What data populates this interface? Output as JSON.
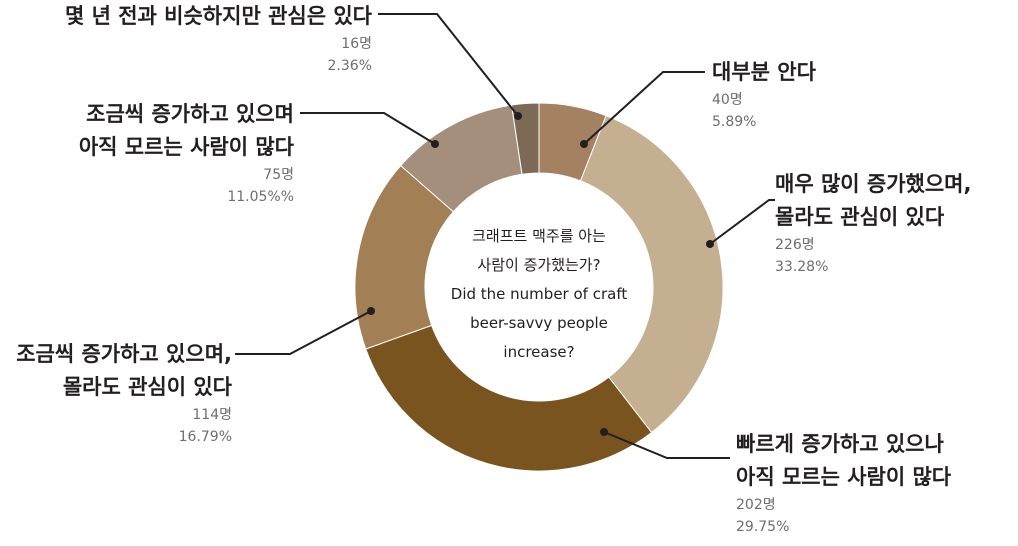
{
  "chart_data": {
    "type": "pie",
    "donut": true,
    "title": "크래프트 맥주를 아는 사람이 증가했는가? Did the number of craft beer-savvy people increase?",
    "center_lines": [
      "크래프트 맥주를 아는",
      "사람이 증가했는가?",
      "Did the number of craft",
      "beer-savvy people",
      "increase?"
    ],
    "slices": [
      {
        "label_lines": [
          "대부분 안다"
        ],
        "count": "40명",
        "pct_text": "5.89%",
        "value": 5.89,
        "color": "#a48161"
      },
      {
        "label_lines": [
          "매우 많이 증가했으며,",
          "몰라도 관심이 있다"
        ],
        "count": "226명",
        "pct_text": "33.28%",
        "value": 33.28,
        "color": "#c4b090"
      },
      {
        "label_lines": [
          "빠르게 증가하고 있으나",
          "아직 모르는 사람이 많다"
        ],
        "count": "202명",
        "pct_text": "29.75%",
        "value": 29.75,
        "color": "#7a541f"
      },
      {
        "label_lines": [
          "조금씩 증가하고 있으며,",
          "몰라도 관심이 있다"
        ],
        "count": "114명",
        "pct_text": "16.79%",
        "value": 16.79,
        "color": "#a37f55"
      },
      {
        "label_lines": [
          "조금씩 증가하고 있으며",
          "아직 모르는 사람이 많다"
        ],
        "count": "75명",
        "pct_text": "11.05%%",
        "value": 11.05,
        "color": "#a48e7c"
      },
      {
        "label_lines": [
          "몇 년 전과 비슷하지만 관심은 있다"
        ],
        "count": "16명",
        "pct_text": "2.36%",
        "value": 2.36,
        "color": "#7c6a56"
      }
    ]
  }
}
